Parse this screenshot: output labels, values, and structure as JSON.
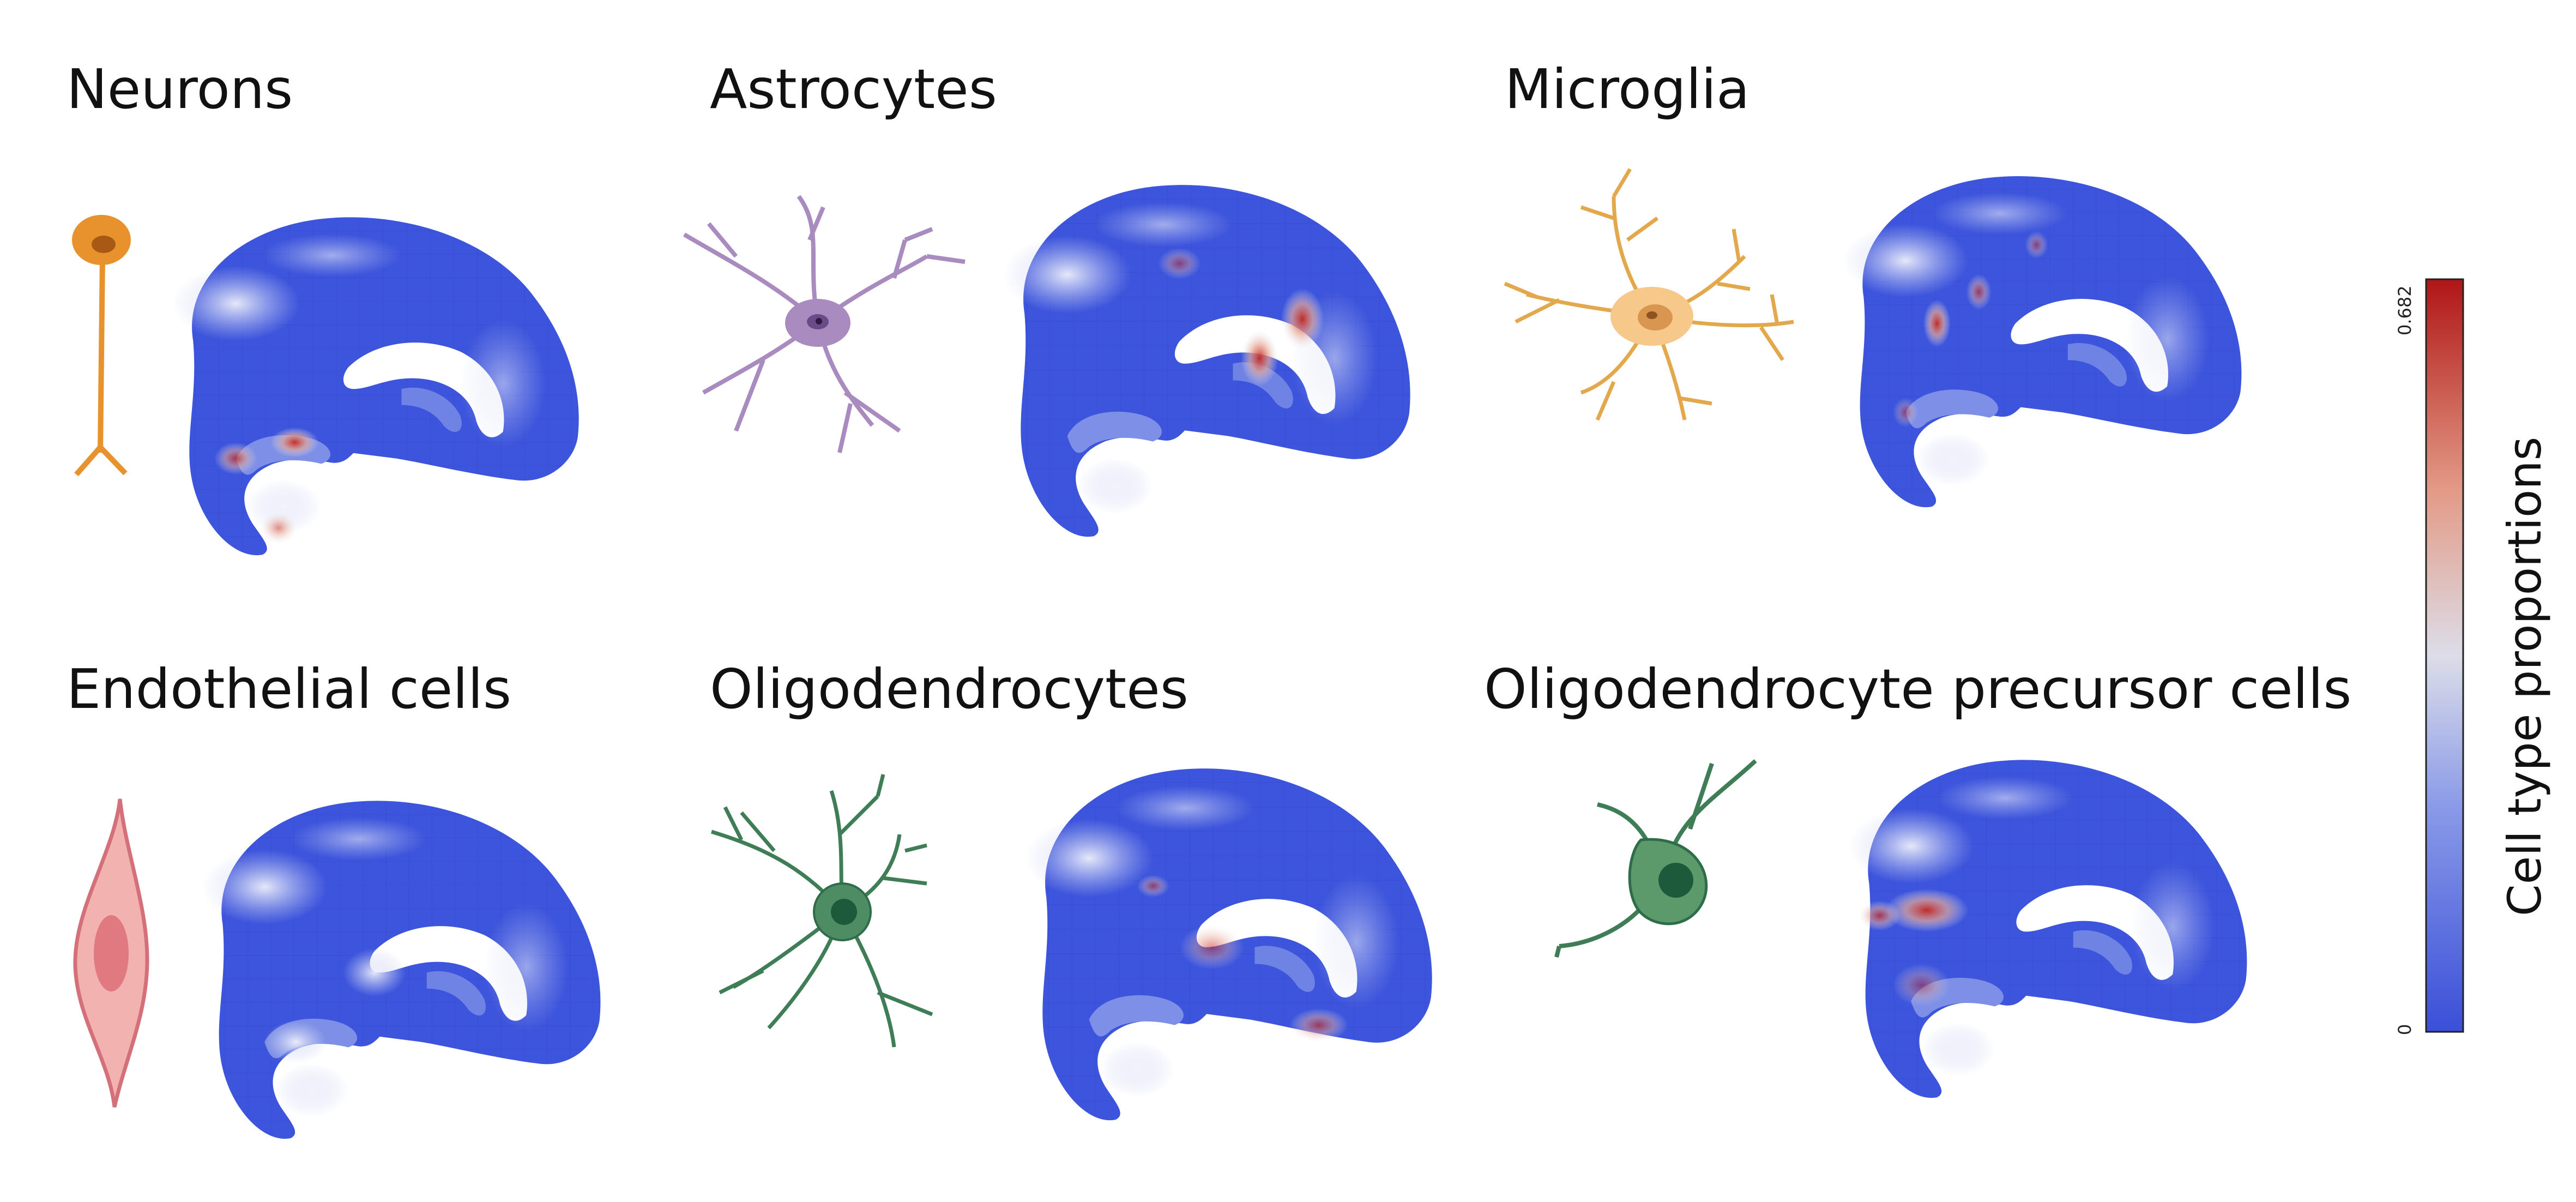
{
  "chart_data": {
    "type": "heatmap",
    "panels": [
      {
        "title": "Neurons",
        "cell_icon": "neuron-icon",
        "icon_color": "#e8922e"
      },
      {
        "title": "Astrocytes",
        "cell_icon": "astrocyte-icon",
        "icon_color": "#a98bc0"
      },
      {
        "title": "Microglia",
        "cell_icon": "microglia-icon",
        "icon_color": "#f6c98a"
      },
      {
        "title": "Endothelial cells",
        "cell_icon": "endothelial-cell-icon",
        "icon_color": "#f1b2b0"
      },
      {
        "title": "Oligodendrocytes",
        "cell_icon": "oligodendrocyte-icon",
        "icon_color": "#4e8c64"
      },
      {
        "title": "Oligodendrocyte precursor cells",
        "cell_icon": "opc-icon",
        "icon_color": "#5c9a6c"
      }
    ],
    "colorbar": {
      "label": "Cell type proportions",
      "range": [
        0,
        0.682
      ],
      "tick_min": "0",
      "tick_max": "0.682",
      "colormap": [
        "#3a4fd8",
        "#8a9ae8",
        "#dcdde8",
        "#e39a86",
        "#b01616"
      ]
    },
    "legend": "none",
    "grid": false
  }
}
